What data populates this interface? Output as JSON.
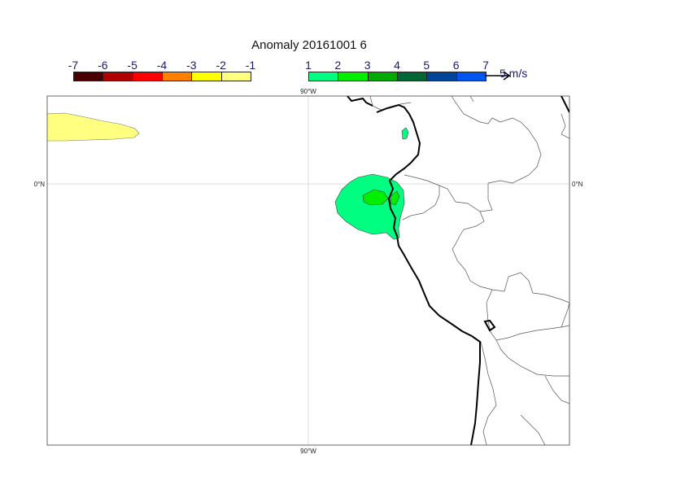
{
  "title": "Anomaly 20161001 6",
  "legend_negative": {
    "ticks": [
      "-7",
      "-6",
      "-5",
      "-4",
      "-3",
      "-2",
      "-1"
    ],
    "colors": [
      "#4a0000",
      "#b00000",
      "#ff0000",
      "#ff8000",
      "#ffff00",
      "#ffff80"
    ]
  },
  "legend_positive": {
    "ticks": [
      "1",
      "2",
      "3",
      "4",
      "5",
      "6",
      "7"
    ],
    "colors": [
      "#00ff80",
      "#00ee00",
      "#00aa00",
      "#006633",
      "#004499",
      "#0055ee"
    ]
  },
  "vector_key": {
    "label": "5 m/s"
  },
  "axes": {
    "top_lon": "90°W",
    "bottom_lon": "90°W",
    "left_lat": "0°N",
    "right_lat": "0°N"
  },
  "colors": {
    "land_border": "#555555",
    "coastline": "#000000",
    "grid": "#dddddd",
    "anomaly_low": "#ffff80",
    "anomaly_pos1": "#00ff80",
    "anomaly_pos2": "#00ee00"
  }
}
